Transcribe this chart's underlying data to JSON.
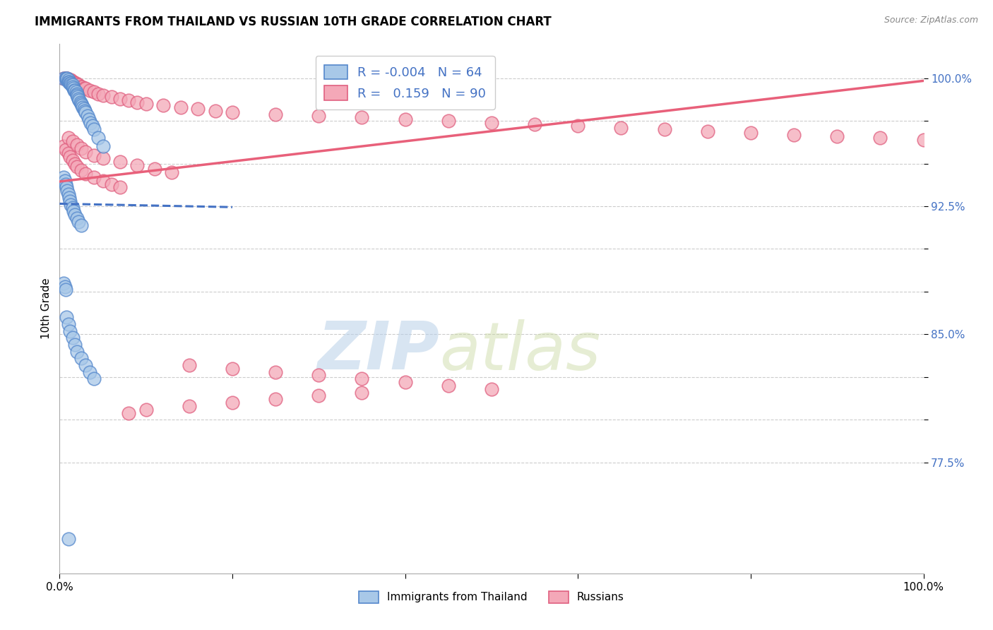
{
  "title": "IMMIGRANTS FROM THAILAND VS RUSSIAN 10TH GRADE CORRELATION CHART",
  "source": "Source: ZipAtlas.com",
  "ylabel": "10th Grade",
  "blue_color": "#A8C8E8",
  "pink_color": "#F4A8B8",
  "blue_edge_color": "#5588CC",
  "pink_edge_color": "#E06080",
  "blue_line_color": "#4472C4",
  "pink_line_color": "#E8607A",
  "watermark_zip": "ZIP",
  "watermark_atlas": "atlas",
  "xmin": 0.0,
  "xmax": 1.0,
  "ymin": 0.71,
  "ymax": 1.02,
  "y_ticks": [
    0.775,
    0.8,
    0.825,
    0.85,
    0.875,
    0.9,
    0.925,
    0.95,
    0.975,
    1.0
  ],
  "y_tick_labels": [
    "77.5%",
    "",
    "",
    "85.0%",
    "",
    "",
    "92.5%",
    "",
    "",
    "100.0%"
  ],
  "x_ticks": [
    0.0,
    0.2,
    0.4,
    0.6,
    0.8,
    1.0
  ],
  "x_tick_labels": [
    "0.0%",
    "",
    "",
    "",
    "",
    "100.0%"
  ],
  "blue_trend_x": [
    0.0,
    0.2
  ],
  "blue_trend_y": [
    0.9265,
    0.9245
  ],
  "pink_trend_x": [
    0.0,
    1.0
  ],
  "pink_trend_y": [
    0.9395,
    0.9985
  ],
  "blue_scatter_x": [
    0.005,
    0.007,
    0.008,
    0.009,
    0.01,
    0.01,
    0.011,
    0.012,
    0.013,
    0.014,
    0.015,
    0.015,
    0.016,
    0.017,
    0.018,
    0.019,
    0.02,
    0.02,
    0.021,
    0.022,
    0.023,
    0.024,
    0.025,
    0.026,
    0.027,
    0.028,
    0.029,
    0.03,
    0.032,
    0.034,
    0.036,
    0.038,
    0.04,
    0.045,
    0.05,
    0.005,
    0.006,
    0.007,
    0.008,
    0.009,
    0.01,
    0.011,
    0.012,
    0.013,
    0.015,
    0.016,
    0.018,
    0.02,
    0.022,
    0.025,
    0.005,
    0.006,
    0.007,
    0.008,
    0.01,
    0.012,
    0.015,
    0.018,
    0.02,
    0.025,
    0.03,
    0.035,
    0.04,
    0.01
  ],
  "blue_scatter_y": [
    1.0,
    1.0,
    1.0,
    1.0,
    0.999,
    0.998,
    0.998,
    0.997,
    0.997,
    0.996,
    0.996,
    0.995,
    0.994,
    0.993,
    0.993,
    0.992,
    0.991,
    0.99,
    0.989,
    0.988,
    0.987,
    0.986,
    0.985,
    0.984,
    0.983,
    0.982,
    0.981,
    0.98,
    0.978,
    0.976,
    0.974,
    0.972,
    0.97,
    0.965,
    0.96,
    0.942,
    0.94,
    0.938,
    0.936,
    0.934,
    0.932,
    0.93,
    0.928,
    0.926,
    0.924,
    0.922,
    0.92,
    0.918,
    0.916,
    0.914,
    0.88,
    0.878,
    0.876,
    0.86,
    0.856,
    0.852,
    0.848,
    0.844,
    0.84,
    0.836,
    0.832,
    0.828,
    0.824,
    0.73
  ],
  "pink_scatter_x": [
    0.005,
    0.006,
    0.007,
    0.008,
    0.009,
    0.01,
    0.011,
    0.012,
    0.013,
    0.014,
    0.015,
    0.016,
    0.017,
    0.018,
    0.019,
    0.02,
    0.022,
    0.024,
    0.026,
    0.028,
    0.03,
    0.035,
    0.04,
    0.045,
    0.05,
    0.06,
    0.07,
    0.08,
    0.09,
    0.1,
    0.12,
    0.14,
    0.16,
    0.18,
    0.2,
    0.25,
    0.3,
    0.35,
    0.4,
    0.45,
    0.5,
    0.55,
    0.6,
    0.65,
    0.7,
    0.75,
    0.8,
    0.85,
    0.9,
    0.95,
    1.0,
    0.005,
    0.007,
    0.01,
    0.012,
    0.015,
    0.018,
    0.02,
    0.025,
    0.03,
    0.04,
    0.05,
    0.06,
    0.07,
    0.01,
    0.015,
    0.02,
    0.025,
    0.03,
    0.04,
    0.05,
    0.07,
    0.09,
    0.11,
    0.13,
    0.15,
    0.2,
    0.25,
    0.3,
    0.35,
    0.4,
    0.45,
    0.5,
    0.35,
    0.3,
    0.25,
    0.2,
    0.15,
    0.1,
    0.08
  ],
  "pink_scatter_y": [
    1.0,
    1.0,
    1.0,
    1.0,
    1.0,
    0.999,
    0.999,
    0.999,
    0.999,
    0.998,
    0.998,
    0.998,
    0.997,
    0.997,
    0.997,
    0.996,
    0.996,
    0.995,
    0.995,
    0.994,
    0.994,
    0.993,
    0.992,
    0.991,
    0.99,
    0.989,
    0.988,
    0.987,
    0.986,
    0.985,
    0.984,
    0.983,
    0.982,
    0.981,
    0.98,
    0.979,
    0.978,
    0.977,
    0.976,
    0.975,
    0.974,
    0.973,
    0.972,
    0.971,
    0.97,
    0.969,
    0.968,
    0.967,
    0.966,
    0.965,
    0.964,
    0.96,
    0.958,
    0.956,
    0.954,
    0.952,
    0.95,
    0.948,
    0.946,
    0.944,
    0.942,
    0.94,
    0.938,
    0.936,
    0.965,
    0.963,
    0.961,
    0.959,
    0.957,
    0.955,
    0.953,
    0.951,
    0.949,
    0.947,
    0.945,
    0.832,
    0.83,
    0.828,
    0.826,
    0.824,
    0.822,
    0.82,
    0.818,
    0.816,
    0.814,
    0.812,
    0.81,
    0.808,
    0.806,
    0.804
  ]
}
